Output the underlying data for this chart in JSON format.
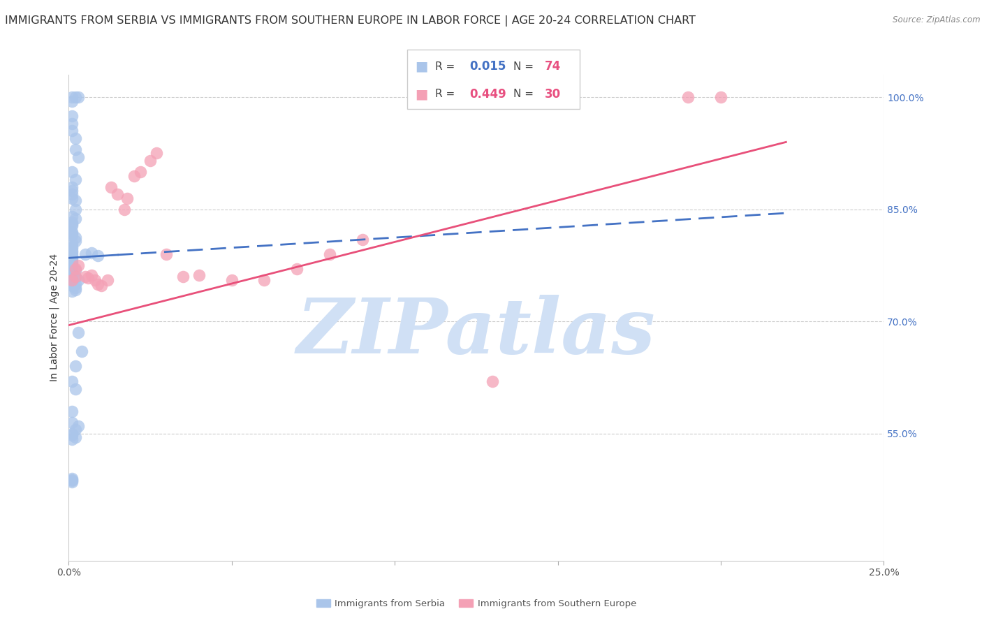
{
  "title": "IMMIGRANTS FROM SERBIA VS IMMIGRANTS FROM SOUTHERN EUROPE IN LABOR FORCE | AGE 20-24 CORRELATION CHART",
  "source": "Source: ZipAtlas.com",
  "ylabel": "In Labor Force | Age 20-24",
  "xlim": [
    0.0,
    0.25
  ],
  "ylim": [
    0.38,
    1.03
  ],
  "yticks_right": [
    0.55,
    0.7,
    0.85,
    1.0
  ],
  "ytick_right_labels": [
    "55.0%",
    "70.0%",
    "85.0%",
    "100.0%"
  ],
  "grid_color": "#cccccc",
  "background_color": "#ffffff",
  "serbia_color": "#aac5ea",
  "southern_color": "#f4a0b5",
  "serbia_line_color": "#4472c4",
  "southern_line_color": "#e8507a",
  "serbia_R": 0.015,
  "serbia_N": 74,
  "southern_R": 0.449,
  "southern_N": 30,
  "watermark": "ZIPatlas",
  "watermark_color": "#d0e0f5",
  "title_fontsize": 11.5,
  "axis_label_fontsize": 10,
  "tick_fontsize": 10,
  "serbia_x": [
    0.001,
    0.001,
    0.002,
    0.003,
    0.001,
    0.001,
    0.001,
    0.002,
    0.002,
    0.003,
    0.001,
    0.002,
    0.001,
    0.001,
    0.001,
    0.001,
    0.002,
    0.002,
    0.001,
    0.002,
    0.001,
    0.001,
    0.001,
    0.001,
    0.001,
    0.001,
    0.002,
    0.002,
    0.001,
    0.001,
    0.001,
    0.001,
    0.001,
    0.001,
    0.001,
    0.001,
    0.001,
    0.001,
    0.001,
    0.001,
    0.001,
    0.001,
    0.002,
    0.001,
    0.001,
    0.001,
    0.002,
    0.003,
    0.001,
    0.002,
    0.001,
    0.002,
    0.002,
    0.001,
    0.005,
    0.007,
    0.009,
    0.003,
    0.004,
    0.002,
    0.001,
    0.002,
    0.001,
    0.001,
    0.003,
    0.002,
    0.001,
    0.001,
    0.002,
    0.001,
    0.001,
    0.001,
    0.001,
    0.001
  ],
  "serbia_y": [
    1.0,
    0.995,
    1.0,
    1.0,
    0.975,
    0.965,
    0.955,
    0.945,
    0.93,
    0.92,
    0.9,
    0.89,
    0.88,
    0.875,
    0.87,
    0.865,
    0.862,
    0.85,
    0.84,
    0.838,
    0.833,
    0.83,
    0.828,
    0.82,
    0.818,
    0.815,
    0.812,
    0.808,
    0.805,
    0.8,
    0.798,
    0.795,
    0.793,
    0.79,
    0.788,
    0.785,
    0.782,
    0.78,
    0.778,
    0.775,
    0.773,
    0.77,
    0.768,
    0.765,
    0.762,
    0.76,
    0.758,
    0.755,
    0.752,
    0.75,
    0.748,
    0.745,
    0.742,
    0.74,
    0.79,
    0.792,
    0.788,
    0.685,
    0.66,
    0.64,
    0.62,
    0.61,
    0.58,
    0.565,
    0.56,
    0.555,
    0.55,
    0.548,
    0.545,
    0.542,
    0.49,
    0.488,
    0.487,
    0.485
  ],
  "southern_x": [
    0.001,
    0.002,
    0.002,
    0.003,
    0.005,
    0.006,
    0.007,
    0.008,
    0.009,
    0.01,
    0.012,
    0.013,
    0.015,
    0.017,
    0.018,
    0.02,
    0.022,
    0.025,
    0.027,
    0.03,
    0.035,
    0.04,
    0.05,
    0.06,
    0.07,
    0.08,
    0.09,
    0.13,
    0.19,
    0.2
  ],
  "southern_y": [
    0.755,
    0.76,
    0.77,
    0.775,
    0.76,
    0.758,
    0.762,
    0.755,
    0.75,
    0.748,
    0.755,
    0.88,
    0.87,
    0.85,
    0.865,
    0.895,
    0.9,
    0.915,
    0.925,
    0.79,
    0.76,
    0.762,
    0.755,
    0.755,
    0.77,
    0.79,
    0.81,
    0.62,
    1.0,
    1.0
  ]
}
